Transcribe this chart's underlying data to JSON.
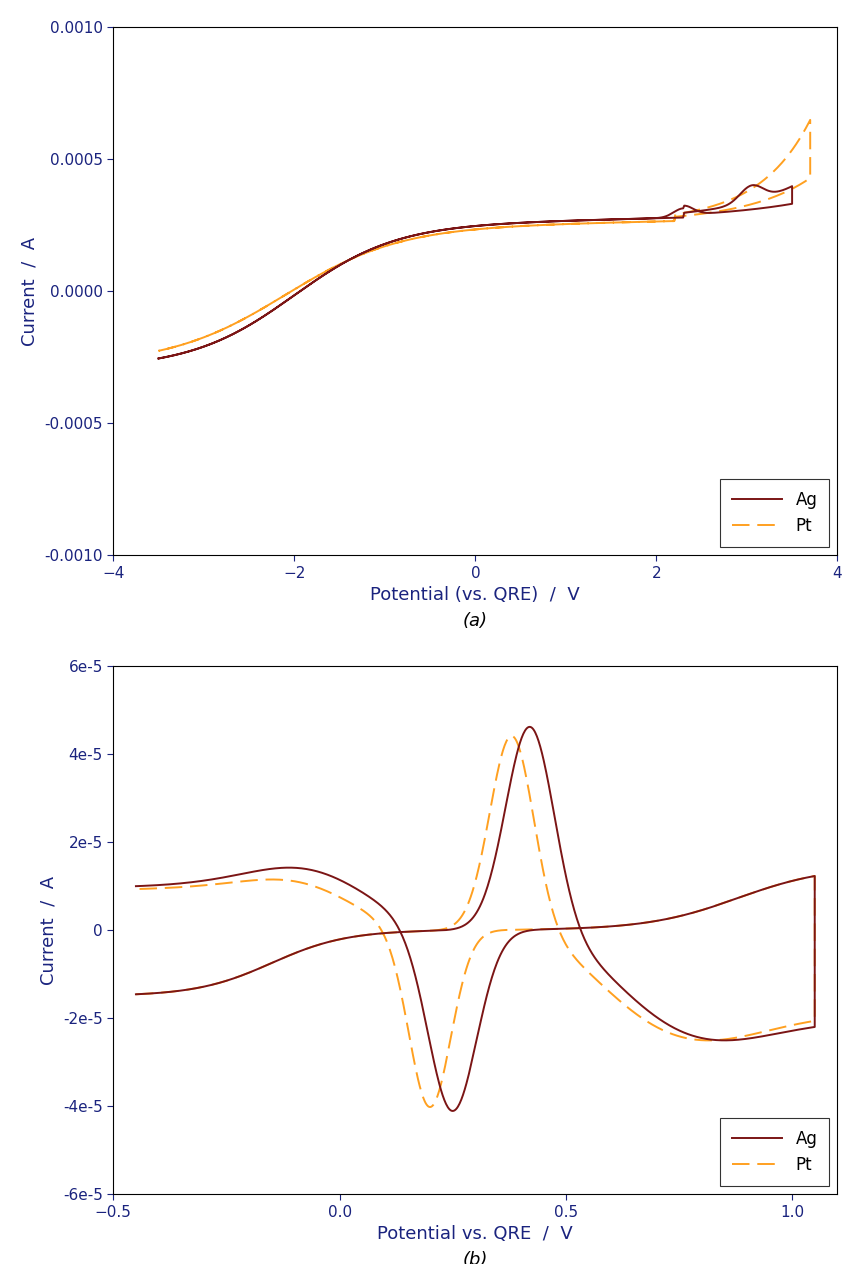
{
  "plot_a": {
    "xlabel": "Potential (vs. QRE)  /  V",
    "ylabel": "Current  /  A",
    "xlim": [
      -4,
      4
    ],
    "ylim": [
      -0.001,
      0.001
    ],
    "yticks": [
      -0.001,
      -0.0005,
      0.0,
      0.0005,
      0.001
    ],
    "xticks": [
      -4,
      -2,
      0,
      2,
      4
    ],
    "label_a": "(a)",
    "ag_color": "#7B1515",
    "pt_color": "#FFA020",
    "legend_labels": [
      "Ag",
      "Pt"
    ]
  },
  "plot_b": {
    "xlabel": "Potential vs. QRE  /  V",
    "ylabel": "Current  /  A",
    "xlim": [
      -0.5,
      1.1
    ],
    "ylim": [
      -6e-05,
      6e-05
    ],
    "yticks": [
      -6e-05,
      -4e-05,
      -2e-05,
      0,
      2e-05,
      4e-05,
      6e-05
    ],
    "xticks": [
      -0.5,
      0.0,
      0.5,
      1.0
    ],
    "label_b": "(b)",
    "ag_color": "#7B1515",
    "pt_color": "#FFA020",
    "legend_labels": [
      "Ag",
      "Pt"
    ]
  },
  "background_color": "#ffffff",
  "tick_color": "#1a237e",
  "label_color": "#1a237e"
}
